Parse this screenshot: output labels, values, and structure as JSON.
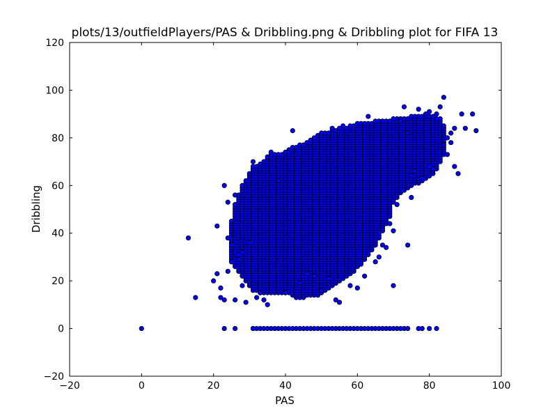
{
  "chart_data": {
    "type": "scatter",
    "title": "plots/13/outfieldPlayers/PAS & Dribbling.png & Dribbling plot for FIFA 13",
    "xlabel": "PAS",
    "ylabel": "Dribbling",
    "xlim": [
      -20,
      100
    ],
    "ylim": [
      -20,
      120
    ],
    "xticks": [
      -20,
      0,
      20,
      40,
      60,
      80,
      100
    ],
    "yticks": [
      -20,
      0,
      20,
      40,
      60,
      80,
      100,
      120
    ],
    "grid": false,
    "marker_color": "#0000ff",
    "marker_edge": "#000000",
    "series": [
      {
        "points": [
          [
            0,
            0
          ],
          [
            13,
            38
          ],
          [
            15,
            13
          ],
          [
            20,
            20
          ],
          [
            21,
            23
          ],
          [
            21,
            43
          ],
          [
            22,
            17
          ],
          [
            22,
            13
          ],
          [
            23,
            12
          ],
          [
            23,
            0
          ],
          [
            23,
            60
          ],
          [
            24,
            53
          ],
          [
            24,
            24
          ],
          [
            25,
            35
          ],
          [
            25,
            28
          ],
          [
            26,
            0
          ],
          [
            26,
            12
          ],
          [
            26,
            56
          ],
          [
            27,
            29
          ],
          [
            27,
            31
          ],
          [
            28,
            32
          ],
          [
            28,
            18
          ],
          [
            29,
            11
          ],
          [
            30,
            36
          ],
          [
            31,
            70
          ],
          [
            31,
            0
          ],
          [
            32,
            13
          ],
          [
            33,
            15
          ],
          [
            34,
            12
          ],
          [
            35,
            10
          ],
          [
            36,
            74
          ],
          [
            38,
            62
          ],
          [
            40,
            15
          ],
          [
            41,
            74
          ],
          [
            42,
            83
          ],
          [
            44,
            19
          ],
          [
            46,
            23
          ],
          [
            48,
            22
          ],
          [
            50,
            16
          ],
          [
            52,
            21
          ],
          [
            53,
            84
          ],
          [
            54,
            12
          ],
          [
            55,
            11
          ],
          [
            56,
            85
          ],
          [
            58,
            18
          ],
          [
            60,
            17
          ],
          [
            62,
            22
          ],
          [
            63,
            89
          ],
          [
            65,
            28
          ],
          [
            66,
            30
          ],
          [
            67,
            35
          ],
          [
            68,
            34
          ],
          [
            69,
            44
          ],
          [
            70,
            41
          ],
          [
            70,
            18
          ],
          [
            71,
            52
          ],
          [
            72,
            87
          ],
          [
            73,
            93
          ],
          [
            74,
            35
          ],
          [
            74,
            82
          ],
          [
            75,
            64
          ],
          [
            75,
            55
          ],
          [
            76,
            66
          ],
          [
            77,
            92
          ],
          [
            78,
            63
          ],
          [
            79,
            90
          ],
          [
            80,
            91
          ],
          [
            81,
            67
          ],
          [
            82,
            90
          ],
          [
            83,
            88
          ],
          [
            83,
            93
          ],
          [
            84,
            97
          ],
          [
            85,
            73
          ],
          [
            86,
            82
          ],
          [
            87,
            84
          ],
          [
            88,
            65
          ],
          [
            89,
            90
          ],
          [
            90,
            84
          ],
          [
            92,
            90
          ],
          [
            93,
            83
          ],
          [
            84,
            77
          ],
          [
            85,
            80
          ],
          [
            86,
            78
          ],
          [
            87,
            68
          ],
          [
            80,
            68
          ]
        ]
      }
    ],
    "zero_row": {
      "y": 0,
      "x_start": 31,
      "x_end": 74,
      "x_step": 1,
      "extra_x": [
        77,
        78,
        80,
        82
      ]
    },
    "cloud_boundary": [
      [
        31,
        68
      ],
      [
        34,
        70
      ],
      [
        36,
        74
      ],
      [
        40,
        74
      ],
      [
        42,
        76
      ],
      [
        46,
        78
      ],
      [
        50,
        82
      ],
      [
        55,
        84
      ],
      [
        60,
        86
      ],
      [
        65,
        87
      ],
      [
        70,
        88
      ],
      [
        75,
        89
      ],
      [
        78,
        90
      ],
      [
        80,
        90
      ],
      [
        82,
        89
      ],
      [
        84,
        86
      ],
      [
        85,
        80
      ],
      [
        84,
        72
      ],
      [
        82,
        66
      ],
      [
        80,
        63
      ],
      [
        76,
        60
      ],
      [
        72,
        56
      ],
      [
        70,
        52
      ],
      [
        69,
        46
      ],
      [
        67,
        40
      ],
      [
        65,
        34
      ],
      [
        62,
        28
      ],
      [
        58,
        22
      ],
      [
        54,
        18
      ],
      [
        50,
        14
      ],
      [
        46,
        13
      ],
      [
        43,
        13
      ],
      [
        40,
        15
      ],
      [
        37,
        15
      ],
      [
        34,
        14
      ],
      [
        31,
        16
      ],
      [
        28,
        22
      ],
      [
        25,
        28
      ],
      [
        24,
        38
      ],
      [
        26,
        52
      ],
      [
        28,
        60
      ]
    ]
  }
}
